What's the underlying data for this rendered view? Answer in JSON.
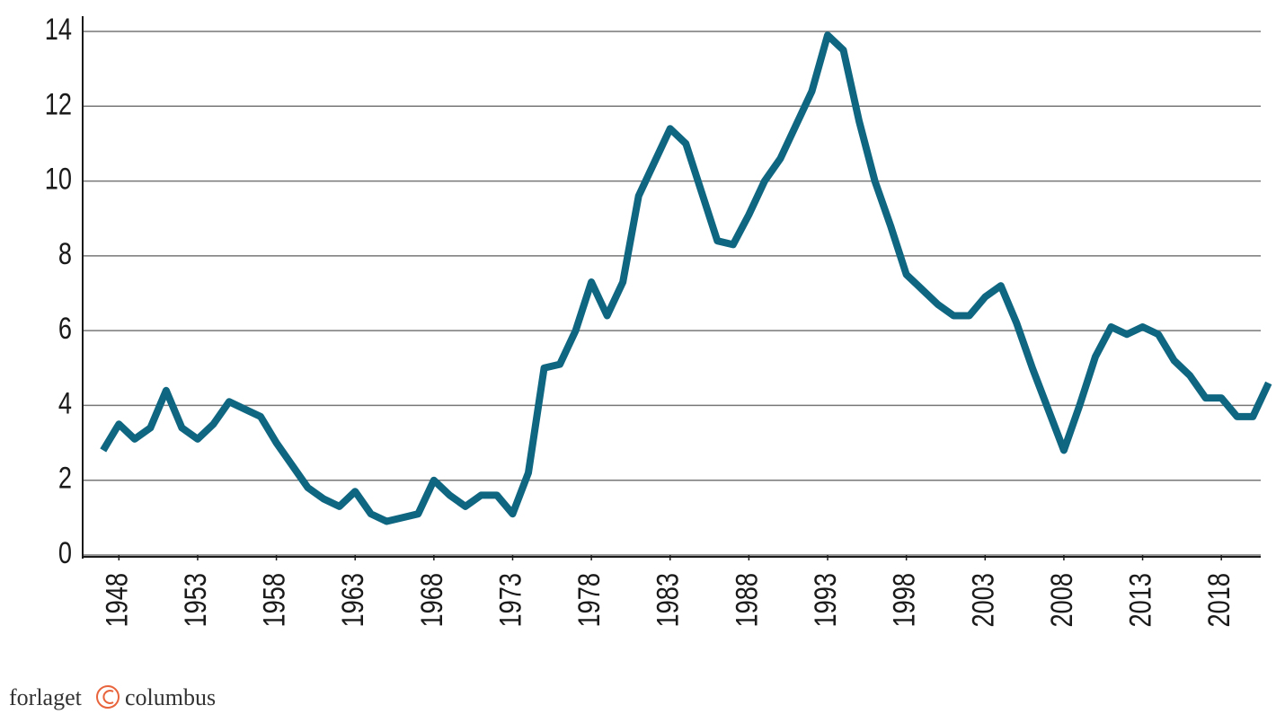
{
  "chart_data": {
    "type": "line",
    "x": [
      1947,
      1948,
      1949,
      1950,
      1951,
      1952,
      1953,
      1954,
      1955,
      1956,
      1957,
      1958,
      1959,
      1960,
      1961,
      1962,
      1963,
      1964,
      1965,
      1966,
      1967,
      1968,
      1969,
      1970,
      1971,
      1972,
      1973,
      1974,
      1975,
      1976,
      1977,
      1978,
      1979,
      1980,
      1981,
      1982,
      1983,
      1984,
      1985,
      1986,
      1987,
      1988,
      1989,
      1990,
      1991,
      1992,
      1993,
      1994,
      1995,
      1996,
      1997,
      1998,
      1999,
      2000,
      2001,
      2002,
      2003,
      2004,
      2005,
      2006,
      2007,
      2008,
      2009,
      2010,
      2011,
      2012,
      2013,
      2014,
      2015,
      2016,
      2017,
      2018,
      2019,
      2020,
      2021
    ],
    "series": [
      {
        "color": "#0f6680",
        "values": [
          2.8,
          3.5,
          3.1,
          3.4,
          4.4,
          3.4,
          3.1,
          3.5,
          4.1,
          3.9,
          3.7,
          3.0,
          2.4,
          1.8,
          1.5,
          1.3,
          1.7,
          1.1,
          0.9,
          1.0,
          1.1,
          2.0,
          1.6,
          1.3,
          1.6,
          1.6,
          1.1,
          2.2,
          5.0,
          5.1,
          6.0,
          7.3,
          6.4,
          7.3,
          9.6,
          10.5,
          11.4,
          11.0,
          9.7,
          8.4,
          8.3,
          9.1,
          10.0,
          10.6,
          11.5,
          12.4,
          13.9,
          13.5,
          11.6,
          10.0,
          8.8,
          7.5,
          7.1,
          6.7,
          6.4,
          6.4,
          6.9,
          7.2,
          6.2,
          5.0,
          3.9,
          2.8,
          4.0,
          5.3,
          6.1,
          5.9,
          6.1,
          5.9,
          5.2,
          4.8,
          4.2,
          4.2,
          3.7,
          3.7,
          4.6
        ]
      }
    ],
    "xlim": [
      1945.7,
      2020.5
    ],
    "xticks": [
      1948,
      1953,
      1958,
      1963,
      1968,
      1973,
      1978,
      1983,
      1988,
      1993,
      1998,
      2003,
      2008,
      2013,
      2018
    ],
    "ylim": [
      0,
      14
    ],
    "yticks": [
      0,
      2,
      4,
      6,
      8,
      10,
      12,
      14
    ],
    "grid": true
  },
  "footer": {
    "brand": [
      "forlaget",
      "columbus"
    ]
  }
}
